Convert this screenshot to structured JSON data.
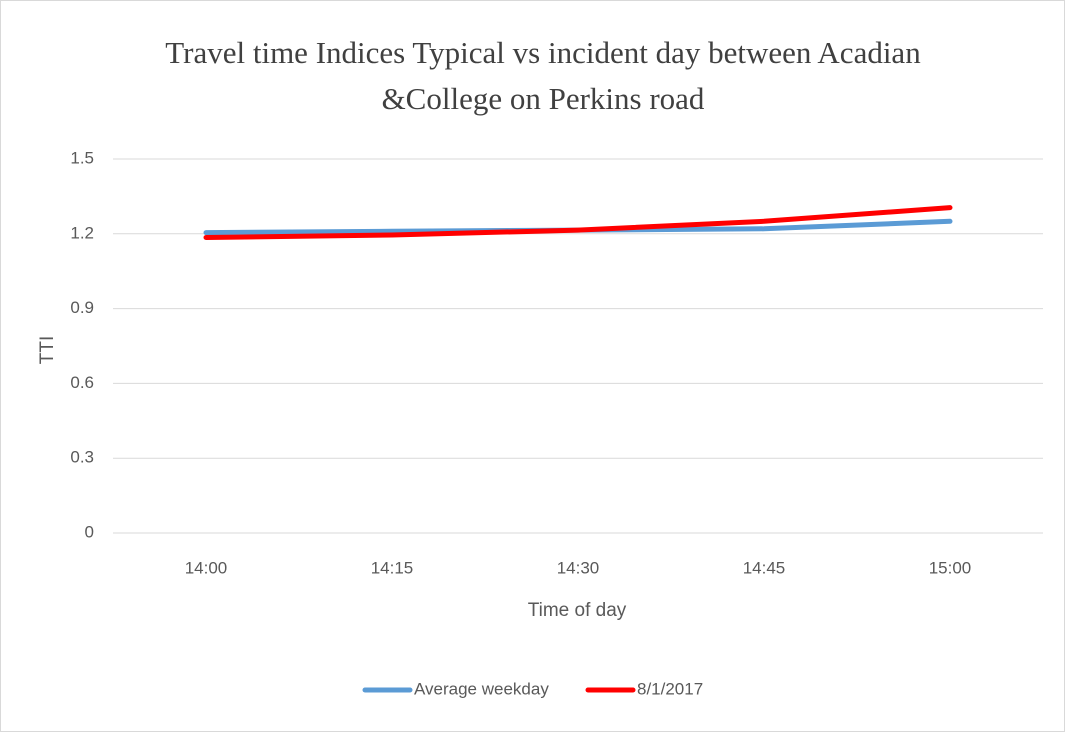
{
  "chart_data": {
    "type": "line",
    "title": "Travel time Indices Typical vs incident day between Acadian &College on Perkins road",
    "x_label": "Time of day",
    "y_label": "TTI",
    "categories": [
      "14:00",
      "14:15",
      "14:30",
      "14:45",
      "15:00"
    ],
    "series": [
      {
        "name": "Average weekday",
        "color": "#5b9bd5",
        "values": [
          1.205,
          1.21,
          1.215,
          1.22,
          1.25
        ]
      },
      {
        "name": "8/1/2017",
        "color": "#ff0000",
        "values": [
          1.185,
          1.195,
          1.215,
          1.25,
          1.305
        ]
      }
    ],
    "ylim": [
      0,
      1.5
    ],
    "yticks": [
      0,
      0.3,
      0.6,
      0.9,
      1.2,
      1.5
    ],
    "grid": true,
    "legend": "bottom"
  }
}
